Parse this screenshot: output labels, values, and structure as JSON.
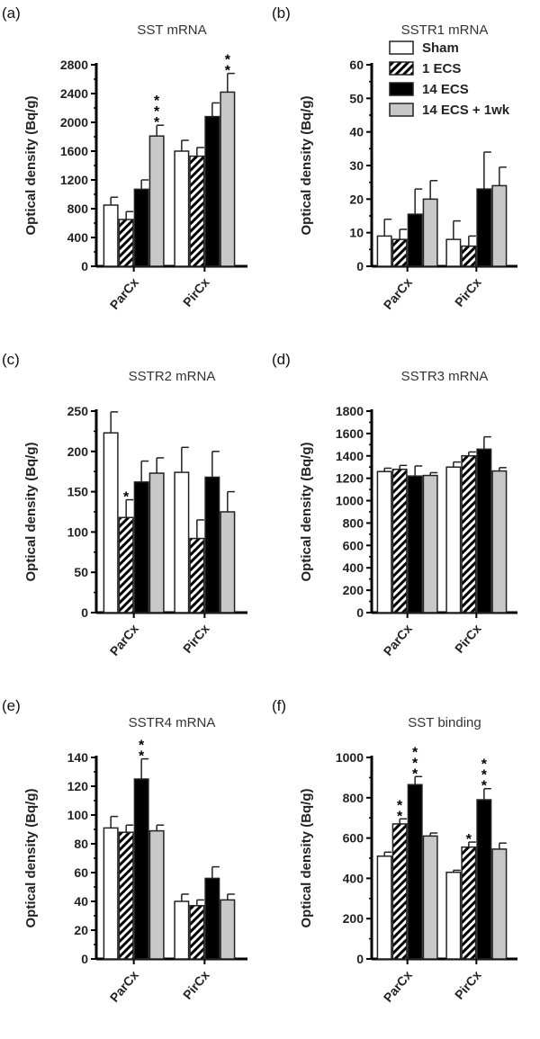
{
  "legend": [
    "Sham",
    "1 ECS",
    "14 ECS",
    "14 ECS + 1wk"
  ],
  "colors": {
    "Sham": "#ffffff",
    "1 ECS": "hatch",
    "14 ECS": "#000000",
    "14 ECS + 1wk": "#c8c8c8"
  },
  "chart_data": [
    {
      "panel": "(a)",
      "type": "bar",
      "title": "SST mRNA",
      "ylabel": "Optical density (Bq/g)",
      "categories": [
        "ParCx",
        "PirCx"
      ],
      "ylim": [
        0,
        2800
      ],
      "yticks": [
        0,
        400,
        800,
        1200,
        1600,
        2000,
        2400,
        2800
      ],
      "series": [
        {
          "name": "Sham",
          "values": [
            850,
            1600
          ],
          "errors": [
            110,
            150
          ],
          "stars": [
            "",
            ""
          ]
        },
        {
          "name": "1 ECS",
          "values": [
            650,
            1530
          ],
          "errors": [
            110,
            120
          ],
          "stars": [
            "",
            ""
          ]
        },
        {
          "name": "14 ECS",
          "values": [
            1070,
            2080
          ],
          "errors": [
            130,
            190
          ],
          "stars": [
            "",
            ""
          ]
        },
        {
          "name": "14 ECS + 1wk",
          "values": [
            1810,
            2420
          ],
          "errors": [
            150,
            260
          ],
          "stars": [
            "***",
            "**"
          ]
        }
      ]
    },
    {
      "panel": "(b)",
      "type": "bar",
      "title": "SSTR1 mRNA",
      "ylabel": "Optical density (Bq/g)",
      "categories": [
        "ParCx",
        "PirCx"
      ],
      "ylim": [
        0,
        60
      ],
      "yticks": [
        0,
        10,
        20,
        30,
        40,
        50,
        60
      ],
      "legend_position": "top-left",
      "series": [
        {
          "name": "Sham",
          "values": [
            9,
            8
          ],
          "errors": [
            5,
            5.5
          ],
          "stars": [
            "",
            ""
          ]
        },
        {
          "name": "1 ECS",
          "values": [
            8,
            6
          ],
          "errors": [
            3,
            3
          ],
          "stars": [
            "",
            ""
          ]
        },
        {
          "name": "14 ECS",
          "values": [
            15.5,
            23
          ],
          "errors": [
            7.5,
            11
          ],
          "stars": [
            "",
            ""
          ]
        },
        {
          "name": "14 ECS + 1wk",
          "values": [
            20,
            24
          ],
          "errors": [
            5.5,
            5.5
          ],
          "stars": [
            "",
            ""
          ]
        }
      ]
    },
    {
      "panel": "(c)",
      "type": "bar",
      "title": "SSTR2 mRNA",
      "ylabel": "Optical density (Bq/g)",
      "categories": [
        "ParCx",
        "PirCx"
      ],
      "ylim": [
        0,
        250
      ],
      "yticks": [
        0,
        50,
        100,
        150,
        200,
        250
      ],
      "series": [
        {
          "name": "Sham",
          "values": [
            223,
            174
          ],
          "errors": [
            26,
            31
          ],
          "stars": [
            "",
            ""
          ]
        },
        {
          "name": "1 ECS",
          "values": [
            118,
            92
          ],
          "errors": [
            22,
            23
          ],
          "stars": [
            "*",
            ""
          ]
        },
        {
          "name": "14 ECS",
          "values": [
            162,
            168
          ],
          "errors": [
            26,
            32
          ],
          "stars": [
            "",
            ""
          ]
        },
        {
          "name": "14 ECS + 1wk",
          "values": [
            173,
            125
          ],
          "errors": [
            19,
            25
          ],
          "stars": [
            "",
            ""
          ]
        }
      ]
    },
    {
      "panel": "(d)",
      "type": "bar",
      "title": "SSTR3 mRNA",
      "ylabel": "Optical density (Bq/g)",
      "categories": [
        "ParCx",
        "PirCx"
      ],
      "ylim": [
        0,
        1800
      ],
      "yticks": [
        0,
        200,
        400,
        600,
        800,
        1000,
        1200,
        1400,
        1600,
        1800
      ],
      "series": [
        {
          "name": "Sham",
          "values": [
            1260,
            1300
          ],
          "errors": [
            30,
            45
          ],
          "stars": [
            "",
            ""
          ]
        },
        {
          "name": "1 ECS",
          "values": [
            1280,
            1400
          ],
          "errors": [
            35,
            35
          ],
          "stars": [
            "",
            ""
          ]
        },
        {
          "name": "14 ECS",
          "values": [
            1220,
            1460
          ],
          "errors": [
            90,
            110
          ],
          "stars": [
            "",
            ""
          ]
        },
        {
          "name": "14 ECS + 1wk",
          "values": [
            1225,
            1265
          ],
          "errors": [
            25,
            30
          ],
          "stars": [
            "",
            ""
          ]
        }
      ]
    },
    {
      "panel": "(e)",
      "type": "bar",
      "title": "SSTR4 mRNA",
      "ylabel": "Optical density (Bq/g)",
      "categories": [
        "ParCx",
        "PirCx"
      ],
      "ylim": [
        0,
        140
      ],
      "yticks": [
        0,
        20,
        40,
        60,
        80,
        100,
        120,
        140
      ],
      "series": [
        {
          "name": "Sham",
          "values": [
            91,
            40
          ],
          "errors": [
            8,
            5
          ],
          "stars": [
            "",
            ""
          ]
        },
        {
          "name": "1 ECS",
          "values": [
            88,
            37
          ],
          "errors": [
            5,
            4
          ],
          "stars": [
            "",
            ""
          ]
        },
        {
          "name": "14 ECS",
          "values": [
            125,
            56
          ],
          "errors": [
            14,
            8
          ],
          "stars": [
            "**",
            ""
          ]
        },
        {
          "name": "14 ECS + 1wk",
          "values": [
            89,
            41
          ],
          "errors": [
            4,
            4
          ],
          "stars": [
            "",
            ""
          ]
        }
      ]
    },
    {
      "panel": "(f)",
      "type": "bar",
      "title": "SST binding",
      "ylabel": "Optical density (Bq/g)",
      "categories": [
        "ParCx",
        "PirCx"
      ],
      "ylim": [
        0,
        1000
      ],
      "yticks": [
        0,
        200,
        400,
        600,
        800,
        1000
      ],
      "series": [
        {
          "name": "Sham",
          "values": [
            510,
            430
          ],
          "errors": [
            20,
            10
          ],
          "stars": [
            "",
            ""
          ]
        },
        {
          "name": "1 ECS",
          "values": [
            670,
            555
          ],
          "errors": [
            25,
            25
          ],
          "stars": [
            "**",
            "*"
          ]
        },
        {
          "name": "14 ECS",
          "values": [
            865,
            790
          ],
          "errors": [
            40,
            55
          ],
          "stars": [
            "***",
            "***"
          ]
        },
        {
          "name": "14 ECS + 1wk",
          "values": [
            610,
            545
          ],
          "errors": [
            15,
            30
          ],
          "stars": [
            "",
            ""
          ]
        }
      ]
    }
  ]
}
